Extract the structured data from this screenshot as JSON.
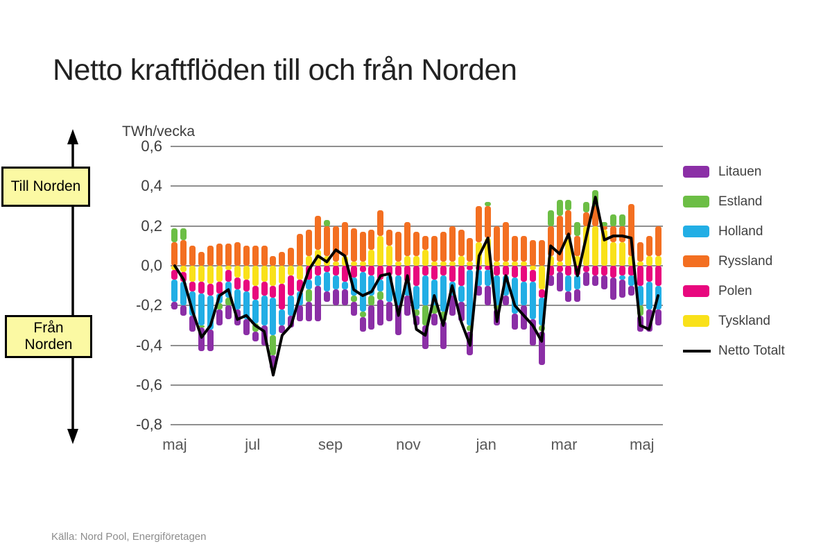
{
  "title": "Netto kraftflöden till och från Norden",
  "annotations": {
    "to_norden": "Till Norden",
    "from_norden": "Från\nNorden"
  },
  "source": "Källa: Nord Pool, Energiföretagen",
  "axis": {
    "unit": "TWh/vecka",
    "y_ticks": [
      {
        "label": "0,6",
        "value": 0.6
      },
      {
        "label": "0,4",
        "value": 0.4
      },
      {
        "label": "0,2",
        "value": 0.2
      },
      {
        "label": "0,0",
        "value": 0.0
      },
      {
        "label": "-0,2",
        "value": -0.2
      },
      {
        "label": "-0,4",
        "value": -0.4
      },
      {
        "label": "-0,6",
        "value": -0.6
      },
      {
        "label": "-0,8",
        "value": -0.8
      }
    ],
    "x_ticks": [
      {
        "label": "maj",
        "week_index": 0
      },
      {
        "label": "jul",
        "week_index": 8.7
      },
      {
        "label": "sep",
        "week_index": 17.4
      },
      {
        "label": "nov",
        "week_index": 26.1
      },
      {
        "label": "jan",
        "week_index": 34.8
      },
      {
        "label": "mar",
        "week_index": 43.5
      },
      {
        "label": "maj",
        "week_index": 52.2
      }
    ]
  },
  "legend": [
    {
      "label": "Litauen",
      "color": "#8b2fa6",
      "type": "box"
    },
    {
      "label": "Estland",
      "color": "#6cbe45",
      "type": "box"
    },
    {
      "label": "Holland",
      "color": "#22aee5",
      "type": "box"
    },
    {
      "label": "Ryssland",
      "color": "#f36f21",
      "type": "box"
    },
    {
      "label": "Polen",
      "color": "#e8087e",
      "type": "box"
    },
    {
      "label": "Tyskland",
      "color": "#f9e11a",
      "type": "box"
    },
    {
      "label": "Netto Totalt",
      "color": "#000000",
      "type": "line"
    }
  ],
  "chart_data": {
    "type": "bar",
    "subtype": "stacked-bar-with-line",
    "unit": "TWh/vecka",
    "weeks": 55,
    "ylim": [
      -0.8,
      0.6
    ],
    "y_tick_step": 0.2,
    "grid": true,
    "legend_position": "right",
    "stack_order": [
      "Tyskland",
      "Polen",
      "Ryssland",
      "Holland",
      "Estland",
      "Litauen"
    ],
    "series": [
      {
        "name": "Tyskland",
        "color": "#f9e11a",
        "values": [
          -0.02,
          -0.03,
          -0.08,
          -0.08,
          -0.09,
          -0.08,
          -0.02,
          -0.06,
          -0.07,
          -0.1,
          -0.08,
          -0.1,
          -0.09,
          -0.05,
          -0.07,
          0.05,
          0.08,
          0.05,
          0.02,
          0.05,
          0.02,
          0.02,
          0.08,
          0.15,
          0.1,
          0.02,
          0.05,
          0.05,
          0.08,
          0.02,
          0.02,
          0.02,
          0.05,
          0.02,
          0.12,
          0.14,
          0.02,
          0.02,
          0.02,
          0.02,
          -0.02,
          -0.12,
          0.05,
          0.02,
          0.15,
          0.05,
          0.2,
          0.2,
          0.18,
          0.12,
          0.12,
          0.05,
          0.02,
          0.05,
          0.05
        ]
      },
      {
        "name": "Polen",
        "color": "#e8087e",
        "values": [
          -0.05,
          -0.05,
          -0.05,
          -0.06,
          -0.06,
          -0.06,
          -0.06,
          -0.06,
          -0.06,
          -0.07,
          -0.07,
          -0.06,
          -0.13,
          -0.1,
          -0.06,
          -0.07,
          -0.05,
          -0.03,
          -0.05,
          -0.08,
          -0.06,
          -0.03,
          -0.05,
          -0.07,
          -0.05,
          -0.05,
          -0.08,
          -0.1,
          -0.05,
          -0.07,
          -0.05,
          -0.08,
          -0.1,
          -0.02,
          -0.02,
          -0.02,
          -0.05,
          -0.05,
          -0.06,
          -0.08,
          -0.06,
          -0.04,
          -0.05,
          -0.03,
          -0.05,
          -0.05,
          -0.03,
          -0.05,
          -0.05,
          -0.06,
          -0.05,
          -0.05,
          -0.1,
          -0.08,
          -0.1
        ]
      },
      {
        "name": "Ryssland",
        "color": "#f36f21",
        "values": [
          0.12,
          0.13,
          0.1,
          0.07,
          0.1,
          0.11,
          0.11,
          0.12,
          0.1,
          0.1,
          0.1,
          0.05,
          0.07,
          0.09,
          0.16,
          0.13,
          0.17,
          0.15,
          0.18,
          0.17,
          0.17,
          0.15,
          0.1,
          0.13,
          0.08,
          0.15,
          0.17,
          0.12,
          0.07,
          0.13,
          0.15,
          0.18,
          0.13,
          0.12,
          0.18,
          0.16,
          0.18,
          0.2,
          0.13,
          0.13,
          0.13,
          0.13,
          0.15,
          0.23,
          0.13,
          0.1,
          0.07,
          0.1,
          0.02,
          0.08,
          0.08,
          0.26,
          0.1,
          0.1,
          0.15
        ]
      },
      {
        "name": "Holland",
        "color": "#22aee5",
        "values": [
          -0.11,
          -0.12,
          -0.12,
          -0.16,
          -0.17,
          -0.05,
          -0.08,
          -0.1,
          -0.14,
          -0.12,
          -0.15,
          -0.19,
          -0.08,
          -0.1,
          -0.07,
          -0.05,
          -0.05,
          -0.1,
          -0.07,
          -0.04,
          -0.09,
          -0.2,
          -0.1,
          -0.06,
          -0.13,
          -0.15,
          -0.07,
          -0.12,
          -0.15,
          -0.13,
          -0.18,
          -0.07,
          -0.08,
          -0.28,
          -0.08,
          -0.08,
          -0.15,
          -0.1,
          -0.18,
          -0.12,
          -0.19,
          -0.14,
          0,
          0,
          -0.08,
          -0.07,
          0,
          0,
          0,
          0,
          -0.02,
          -0.05,
          -0.1,
          -0.14,
          -0.12
        ]
      },
      {
        "name": "Estland",
        "color": "#6cbe45",
        "values": [
          0.07,
          0.06,
          0,
          -0.01,
          0,
          -0.03,
          -0.04,
          0,
          0,
          -0.04,
          0,
          -0.1,
          0,
          0,
          0,
          -0.06,
          0,
          0.03,
          0,
          0,
          -0.03,
          -0.03,
          -0.05,
          -0.04,
          0,
          0,
          0,
          -0.03,
          -0.1,
          -0.04,
          -0.05,
          0,
          0,
          -0.03,
          0,
          0.02,
          -0.02,
          0,
          0,
          0,
          0,
          -0.03,
          0.08,
          0.08,
          0.05,
          0.07,
          0.05,
          0.08,
          0.02,
          0.06,
          0.06,
          0,
          -0.05,
          0,
          0
        ]
      },
      {
        "name": "Litauen",
        "color": "#8b2fa6",
        "values": [
          -0.04,
          -0.05,
          -0.08,
          -0.12,
          -0.11,
          -0.08,
          -0.07,
          -0.08,
          -0.08,
          -0.05,
          -0.1,
          -0.07,
          -0.04,
          -0.06,
          -0.08,
          -0.1,
          -0.18,
          -0.05,
          -0.08,
          -0.08,
          -0.07,
          -0.07,
          -0.12,
          -0.13,
          -0.1,
          -0.15,
          -0.1,
          -0.05,
          -0.12,
          -0.06,
          -0.14,
          -0.1,
          -0.1,
          -0.12,
          -0.05,
          -0.1,
          -0.08,
          -0.05,
          -0.08,
          -0.12,
          -0.13,
          -0.17,
          -0.05,
          -0.1,
          -0.05,
          -0.06,
          -0.07,
          -0.05,
          -0.07,
          -0.11,
          -0.09,
          -0.05,
          -0.08,
          -0.11,
          -0.08
        ]
      }
    ],
    "line": {
      "name": "Netto Totalt",
      "color": "#000000",
      "values": [
        0.0,
        -0.07,
        -0.23,
        -0.36,
        -0.3,
        -0.15,
        -0.12,
        -0.27,
        -0.25,
        -0.3,
        -0.33,
        -0.55,
        -0.35,
        -0.3,
        -0.15,
        -0.02,
        0.05,
        0.02,
        0.08,
        0.05,
        -0.12,
        -0.15,
        -0.13,
        -0.05,
        -0.04,
        -0.25,
        -0.05,
        -0.32,
        -0.35,
        -0.15,
        -0.3,
        -0.1,
        -0.28,
        -0.4,
        0.05,
        0.14,
        -0.28,
        -0.05,
        -0.2,
        -0.25,
        -0.3,
        -0.38,
        0.1,
        0.06,
        0.16,
        -0.05,
        0.15,
        0.345,
        0.13,
        0.15,
        0.15,
        0.14,
        -0.3,
        -0.32,
        -0.15
      ]
    }
  }
}
